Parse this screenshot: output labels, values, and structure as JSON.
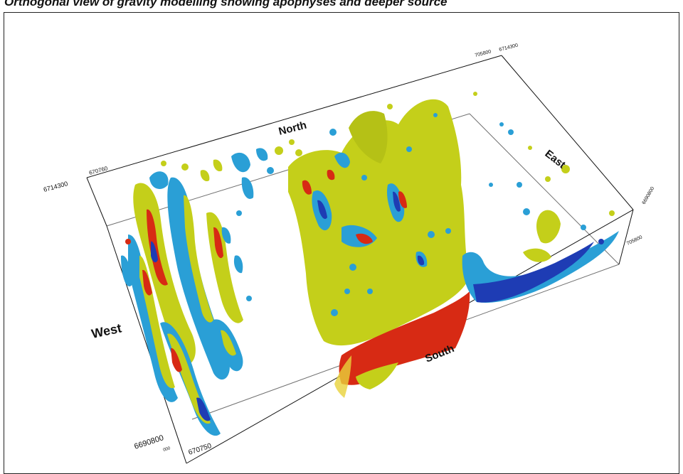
{
  "figure": {
    "title": "Orthogonal view of gravity modelling showing apophyses and deeper source"
  },
  "directions": {
    "north": "North",
    "south": "South",
    "east": "East",
    "west": "West"
  },
  "coordinates": {
    "nw_northing": "6714300",
    "nw_easting": "670760",
    "ne_easting": "705800",
    "ne_northing": "6714300",
    "se_northing": "6690800",
    "se_easting": "705800",
    "sw_northing": "6690800",
    "sw_easting": "670750",
    "sw_small": "000"
  },
  "colors": {
    "low_anomaly": "#2a9fd6",
    "low_core": "#1e3cb4",
    "mid_anomaly": "#c4cf1a",
    "high_anomaly": "#d72a14",
    "box_lines": "#111111"
  }
}
